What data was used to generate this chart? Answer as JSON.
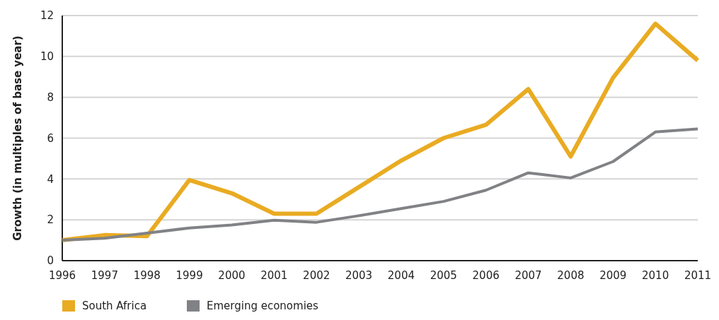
{
  "chart_data": {
    "type": "line",
    "ylabel": "Growth (in multiples of base year)",
    "x": [
      1996,
      1997,
      1998,
      1999,
      2000,
      2001,
      2002,
      2003,
      2004,
      2005,
      2006,
      2007,
      2008,
      2009,
      2010,
      2011
    ],
    "series": [
      {
        "name": "South Africa",
        "color": "#e9ab22",
        "values": [
          1.0,
          1.25,
          1.2,
          3.95,
          3.3,
          2.3,
          2.3,
          3.6,
          4.9,
          6.0,
          6.65,
          8.4,
          5.1,
          8.95,
          11.6,
          9.8
        ]
      },
      {
        "name": "Emerging economies",
        "color": "#818285",
        "values": [
          1.0,
          1.1,
          1.35,
          1.6,
          1.75,
          1.98,
          1.88,
          2.2,
          2.55,
          2.9,
          3.45,
          4.3,
          4.05,
          4.85,
          6.3,
          6.45
        ]
      }
    ],
    "xlim": [
      1996,
      2011
    ],
    "xticks": [
      1996,
      1997,
      1998,
      1999,
      2000,
      2001,
      2002,
      2003,
      2004,
      2005,
      2006,
      2007,
      2008,
      2009,
      2010,
      2011
    ],
    "ylim": [
      0,
      12
    ],
    "yticks": [
      0,
      2,
      4,
      6,
      8,
      10,
      12
    ],
    "grid": "y",
    "legend": "bottom left",
    "marker": "none",
    "line_style": "solid"
  }
}
